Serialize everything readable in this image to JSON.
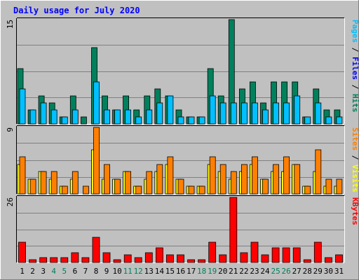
{
  "chart_data": {
    "type": "bar",
    "title": "Daily usage for July 2020",
    "categories": [
      "1",
      "2",
      "3",
      "4",
      "5",
      "6",
      "7",
      "8",
      "9",
      "10",
      "11",
      "12",
      "13",
      "14",
      "15",
      "16",
      "17",
      "18",
      "19",
      "20",
      "21",
      "22",
      "23",
      "24",
      "25",
      "26",
      "27",
      "28",
      "29",
      "30",
      "31"
    ],
    "weekend_categories": [
      "4",
      "5",
      "11",
      "12",
      "18",
      "19",
      "25",
      "26"
    ],
    "panels": [
      {
        "name": "Pages / Files / Hits",
        "label_parts": [
          "Pages",
          " / ",
          "Files",
          " / ",
          "Hits"
        ],
        "label_colors": [
          "#00c0ff",
          "#000000",
          "#0000ff",
          "#000000",
          "#00805c"
        ],
        "ymax_label": "15",
        "ylim": [
          0,
          15
        ],
        "series": [
          {
            "name": "Hits",
            "color": "#00805c",
            "values": [
              8,
              2,
              4,
              3,
              1,
              4,
              1,
              11,
              4,
              2,
              4,
              2,
              4,
              5,
              4,
              2,
              1,
              1,
              8,
              4,
              15,
              5,
              6,
              3,
              6,
              6,
              6,
              1,
              5,
              2,
              2
            ]
          },
          {
            "name": "Files",
            "color": "#00c0ff",
            "values": [
              5,
              2,
              3,
              2,
              1,
              2,
              0,
              6,
              2,
              2,
              2,
              1,
              2,
              3,
              4,
              1,
              1,
              1,
              4,
              3,
              3,
              3,
              3,
              2,
              3,
              3,
              4,
              1,
              3,
              1,
              1
            ]
          },
          {
            "name": "Pages",
            "color": "#00c0ff",
            "values": [
              0,
              0,
              0,
              0,
              0,
              0,
              0,
              0,
              0,
              0,
              0,
              0,
              0,
              0,
              0,
              0,
              0,
              0,
              0,
              0,
              0,
              0,
              0,
              0,
              0,
              0,
              0,
              0,
              0,
              0,
              0
            ]
          }
        ]
      },
      {
        "name": "Sites / Visits",
        "label_parts": [
          "Sites",
          " / ",
          "Visits"
        ],
        "label_colors": [
          "#ff8000",
          "#000000",
          "#ffff00"
        ],
        "ymax_label": "9",
        "ylim": [
          0,
          9
        ],
        "series": [
          {
            "name": "Visits",
            "color": "#ffff00",
            "values": [
              4,
              2,
              3,
              2,
              1,
              2,
              0,
              6,
              2,
              2,
              3,
              1,
              2,
              3,
              4,
              2,
              1,
              1,
              4,
              3,
              2,
              3,
              4,
              2,
              3,
              3,
              4,
              1,
              3,
              1,
              1
            ]
          },
          {
            "name": "Sites",
            "color": "#ff8000",
            "values": [
              5,
              2,
              3,
              3,
              1,
              3,
              1,
              9,
              4,
              2,
              3,
              1,
              3,
              4,
              5,
              2,
              1,
              1,
              5,
              4,
              3,
              4,
              5,
              2,
              4,
              5,
              4,
              1,
              6,
              2,
              2
            ]
          }
        ]
      },
      {
        "name": "KBytes",
        "label_parts": [
          "KBytes"
        ],
        "label_colors": [
          "#ff0000"
        ],
        "ymax_label": "26",
        "ylim": [
          0,
          26
        ],
        "series": [
          {
            "name": "KBytes",
            "color": "#ff0000",
            "values": [
              8,
              1,
              2,
              2,
              2,
              4,
              2,
              10,
              4,
              1,
              3,
              2,
              4,
              6,
              3,
              3,
              1,
              1,
              8,
              3,
              26,
              4,
              8,
              3,
              6,
              6,
              6,
              1,
              8,
              2,
              3
            ]
          }
        ]
      }
    ],
    "grid": true,
    "legend": "right-vertical"
  }
}
